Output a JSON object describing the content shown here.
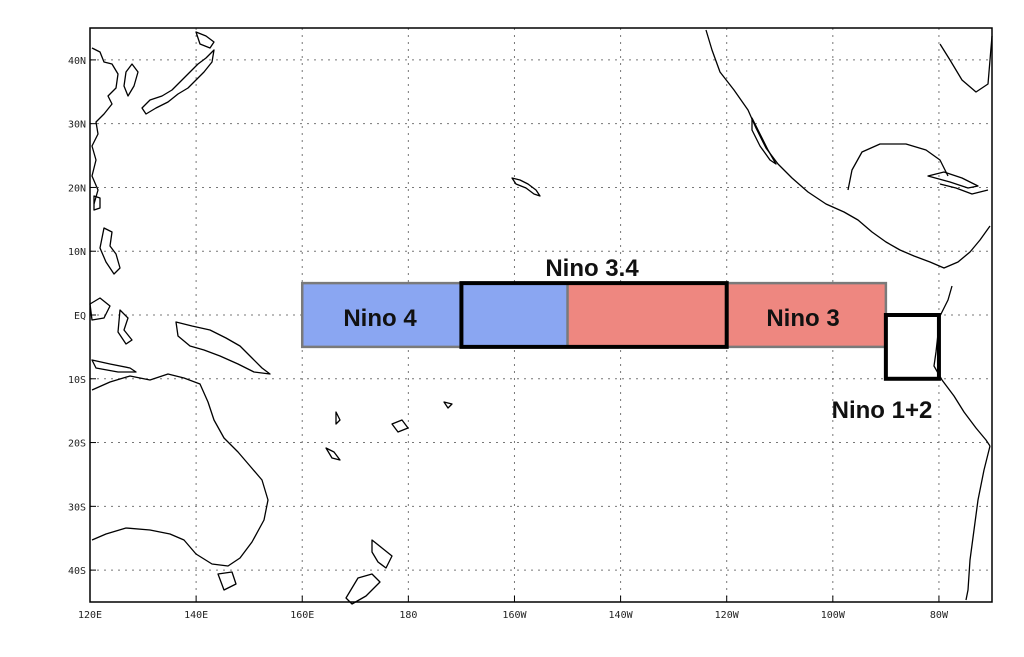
{
  "map": {
    "lon_ticks": [
      "120E",
      "140E",
      "160E",
      "180",
      "160W",
      "140W",
      "120W",
      "100W",
      "80W"
    ],
    "lat_ticks": [
      "40N",
      "30N",
      "20N",
      "10N",
      "EQ",
      "10S",
      "20S",
      "30S",
      "40S"
    ],
    "lon_range": [
      120,
      290
    ],
    "lat_range": [
      -45,
      45
    ]
  },
  "regions": [
    {
      "key": "nino4",
      "label": "Nino 4",
      "lon": [
        160,
        210
      ],
      "lat": [
        -5,
        5
      ],
      "fill": "#8aa6f2"
    },
    {
      "key": "nino3",
      "label": "Nino 3",
      "lon": [
        210,
        270
      ],
      "lat": [
        -5,
        5
      ],
      "fill": "#ee8780"
    },
    {
      "key": "nino34",
      "label": "Nino 3.4",
      "lon": [
        190,
        240
      ],
      "lat": [
        -5,
        5
      ],
      "fill": "none"
    },
    {
      "key": "nino12",
      "label": "Nino 1+2",
      "lon": [
        270,
        280
      ],
      "lat": [
        -10,
        0
      ],
      "fill": "none"
    }
  ],
  "colors": {
    "nino4_fill": "#8aa6f2",
    "nino3_fill": "#ee8780",
    "outline_gray": "#7a7a7a",
    "outline_black": "#000000",
    "grid": "#777777"
  }
}
